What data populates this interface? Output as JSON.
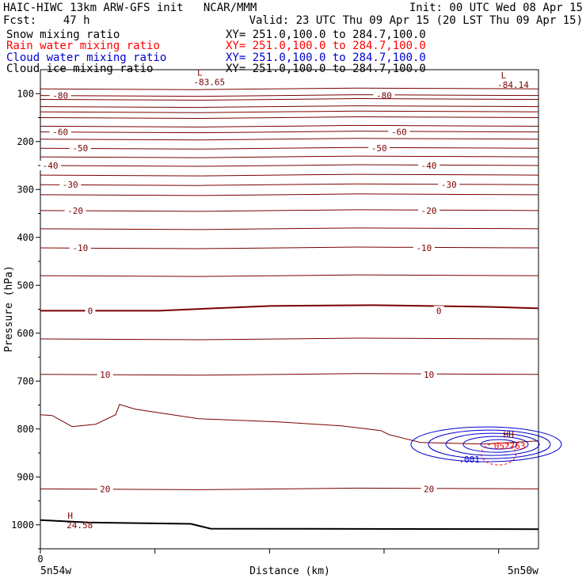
{
  "header": {
    "model_line": "HAIC-HIWC 13km ARW-GFS init   NCAR/MMM",
    "init_line": "Init: 00 UTC Wed 08 Apr 15",
    "fcst_line": "Fcst:    47 h",
    "valid_line": "Valid: 23 UTC Thu 09 Apr 15 (20 LST Thu 09 Apr 15)"
  },
  "fields": [
    {
      "name": "Snow mixing ratio",
      "xy": "XY= 251.0,100.0 to 284.7,100.0",
      "color": "#000000"
    },
    {
      "name": "Rain water mixing ratio",
      "xy": "XY= 251.0,100.0 to 284.7,100.0",
      "color": "#ff0000"
    },
    {
      "name": "Cloud water mixing ratio",
      "xy": "XY= 251.0,100.0 to 284.7,100.0",
      "color": "#0000cc"
    },
    {
      "name": "Cloud ice mixing ratio",
      "xy": "XY= 251.0,100.0 to 284.7,100.0",
      "color": "#000000"
    }
  ],
  "chart_data": {
    "type": "line",
    "xlabel": "Distance (km)",
    "ylabel": "Pressure (hPa)",
    "x_tick_labels": [
      "0"
    ],
    "x_end_labels": [
      "5n54w",
      "5n50w"
    ],
    "ylim": [
      1050,
      50
    ],
    "y_ticks": [
      100,
      200,
      300,
      400,
      500,
      600,
      700,
      800,
      900,
      1000
    ],
    "isotherm_color": "#7a0000",
    "temperature_isotherms_c": [
      {
        "value": -85,
        "p": 90
      },
      {
        "value": -80,
        "p": 104,
        "labels": [
          {
            "x": 0.04,
            "text": "-80"
          },
          {
            "x": 0.69,
            "text": "-80"
          }
        ]
      },
      {
        "value": -80,
        "p": 112
      },
      {
        "value": -75,
        "p": 127
      },
      {
        "value": -70,
        "p": 138
      },
      {
        "value": -70,
        "p": 150
      },
      {
        "value": -65,
        "p": 168
      },
      {
        "value": -60,
        "p": 180,
        "labels": [
          {
            "x": 0.04,
            "text": "-60"
          },
          {
            "x": 0.72,
            "text": "-60"
          }
        ]
      },
      {
        "value": -55,
        "p": 195
      },
      {
        "value": -50,
        "p": 214,
        "labels": [
          {
            "x": 0.08,
            "text": "-50"
          },
          {
            "x": 0.68,
            "text": "-50"
          }
        ]
      },
      {
        "value": -45,
        "p": 232
      },
      {
        "value": -40,
        "p": 250,
        "labels": [
          {
            "x": 0.02,
            "text": "-40"
          },
          {
            "x": 0.78,
            "text": "-40"
          }
        ]
      },
      {
        "value": -35,
        "p": 270
      },
      {
        "value": -30,
        "p": 290,
        "labels": [
          {
            "x": 0.06,
            "text": "-30"
          },
          {
            "x": 0.82,
            "text": "-30"
          }
        ]
      },
      {
        "value": -25,
        "p": 311
      },
      {
        "value": -20,
        "p": 344,
        "labels": [
          {
            "x": 0.07,
            "text": "-20"
          },
          {
            "x": 0.78,
            "text": "-20"
          }
        ]
      },
      {
        "value": -15,
        "p": 382
      },
      {
        "value": -10,
        "p": 422,
        "labels": [
          {
            "x": 0.08,
            "text": "-10"
          },
          {
            "x": 0.77,
            "text": "-10"
          }
        ]
      },
      {
        "value": -5,
        "p": 480
      },
      {
        "value": 0,
        "p": 553,
        "bold": true,
        "labels": [
          {
            "x": 0.1,
            "text": "0"
          },
          {
            "x": 0.8,
            "text": "0"
          }
        ]
      },
      {
        "value": 5,
        "p": 612
      },
      {
        "value": 10,
        "p": 686,
        "labels": [
          {
            "x": 0.13,
            "text": "10"
          },
          {
            "x": 0.78,
            "text": "10"
          }
        ]
      },
      {
        "value": 15,
        "p": 795
      },
      {
        "value": 20,
        "p": 925,
        "labels": [
          {
            "x": 0.13,
            "text": "20"
          },
          {
            "x": 0.78,
            "text": "20"
          }
        ]
      }
    ],
    "cloud_water_contours": [
      0.001,
      0.05,
      0.1,
      0.2,
      0.3
    ],
    "cloud_water_label": ".001",
    "rain_contour_label": ".052763",
    "annotations": [
      {
        "text": "L",
        "value": "-83.65",
        "x": 0.32,
        "p": 62
      },
      {
        "text": "L",
        "value": "-84.14",
        "x": 0.93,
        "p": 68
      },
      {
        "text": "HH",
        "x": 0.94,
        "p": 818
      },
      {
        "text": "H",
        "value": "24.58",
        "x": 0.06,
        "p": 987
      }
    ],
    "surface_line": "Surface pressure (bold black)"
  }
}
